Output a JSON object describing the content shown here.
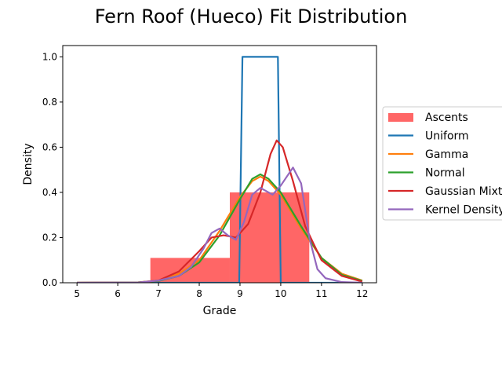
{
  "chart_data": {
    "type": "line",
    "title": "Fern Roof (Hueco) Fit Distribution",
    "xlabel": "Grade",
    "ylabel": "Density",
    "xlim": [
      4.65,
      12.35
    ],
    "ylim": [
      0,
      1.05
    ],
    "xticks": [
      5,
      6,
      7,
      8,
      9,
      10,
      11,
      12
    ],
    "yticks": [
      0.0,
      0.2,
      0.4,
      0.6,
      0.8,
      1.0
    ],
    "xtick_labels": [
      "5",
      "6",
      "7",
      "8",
      "9",
      "10",
      "11",
      "12"
    ],
    "ytick_labels": [
      "0.0",
      "0.2",
      "0.4",
      "0.6",
      "0.8",
      "1.0"
    ],
    "grid": false,
    "legend_position": "right, outside plot area",
    "histogram": {
      "name": "Ascents",
      "color": "#ff6666",
      "bins": [
        {
          "x0": 6.8,
          "x1": 8.75,
          "value": 0.11
        },
        {
          "x0": 8.75,
          "x1": 10.7,
          "value": 0.4
        }
      ]
    },
    "series": [
      {
        "name": "Uniform",
        "color": "#1f77b4",
        "points": [
          [
            5.0,
            0.0
          ],
          [
            8.98,
            0.0
          ],
          [
            8.98,
            0.0
          ],
          [
            9.06,
            1.0
          ],
          [
            9.93,
            1.0
          ],
          [
            10.0,
            0.0
          ],
          [
            12.0,
            0.0
          ]
        ]
      },
      {
        "name": "Gamma",
        "color": "#ff7f0e",
        "points": [
          [
            5.0,
            0.0
          ],
          [
            6.5,
            0.002
          ],
          [
            7.0,
            0.01
          ],
          [
            7.5,
            0.04
          ],
          [
            8.0,
            0.1
          ],
          [
            8.5,
            0.23
          ],
          [
            9.0,
            0.38
          ],
          [
            9.3,
            0.45
          ],
          [
            9.5,
            0.47
          ],
          [
            9.7,
            0.45
          ],
          [
            10.0,
            0.39
          ],
          [
            10.5,
            0.24
          ],
          [
            11.0,
            0.11
          ],
          [
            11.5,
            0.04
          ],
          [
            12.0,
            0.01
          ]
        ]
      },
      {
        "name": "Normal",
        "color": "#2ca02c",
        "points": [
          [
            5.0,
            0.0
          ],
          [
            6.5,
            0.002
          ],
          [
            7.0,
            0.008
          ],
          [
            7.5,
            0.03
          ],
          [
            8.0,
            0.09
          ],
          [
            8.5,
            0.21
          ],
          [
            9.0,
            0.37
          ],
          [
            9.3,
            0.46
          ],
          [
            9.5,
            0.48
          ],
          [
            9.7,
            0.46
          ],
          [
            10.0,
            0.4
          ],
          [
            10.5,
            0.25
          ],
          [
            11.0,
            0.11
          ],
          [
            11.5,
            0.035
          ],
          [
            12.0,
            0.008
          ]
        ]
      },
      {
        "name": "Gaussian Mixture",
        "color": "#d62728",
        "points": [
          [
            5.0,
            0.0
          ],
          [
            6.5,
            0.001
          ],
          [
            7.0,
            0.01
          ],
          [
            7.5,
            0.05
          ],
          [
            8.0,
            0.14
          ],
          [
            8.3,
            0.2
          ],
          [
            8.6,
            0.21
          ],
          [
            8.9,
            0.2
          ],
          [
            9.2,
            0.26
          ],
          [
            9.5,
            0.4
          ],
          [
            9.75,
            0.57
          ],
          [
            9.9,
            0.63
          ],
          [
            10.05,
            0.6
          ],
          [
            10.3,
            0.45
          ],
          [
            10.6,
            0.25
          ],
          [
            11.0,
            0.1
          ],
          [
            11.5,
            0.03
          ],
          [
            12.0,
            0.005
          ]
        ]
      },
      {
        "name": "Kernel Density",
        "color": "#9467bd",
        "points": [
          [
            5.0,
            0.0
          ],
          [
            6.5,
            0.001
          ],
          [
            7.0,
            0.01
          ],
          [
            7.5,
            0.03
          ],
          [
            7.8,
            0.07
          ],
          [
            8.1,
            0.15
          ],
          [
            8.3,
            0.22
          ],
          [
            8.5,
            0.24
          ],
          [
            8.7,
            0.21
          ],
          [
            8.9,
            0.19
          ],
          [
            9.1,
            0.27
          ],
          [
            9.3,
            0.39
          ],
          [
            9.5,
            0.42
          ],
          [
            9.8,
            0.39
          ],
          [
            10.0,
            0.43
          ],
          [
            10.3,
            0.51
          ],
          [
            10.5,
            0.44
          ],
          [
            10.7,
            0.2
          ],
          [
            10.9,
            0.06
          ],
          [
            11.1,
            0.02
          ],
          [
            11.5,
            0.003
          ],
          [
            12.0,
            0.0
          ]
        ]
      }
    ]
  }
}
